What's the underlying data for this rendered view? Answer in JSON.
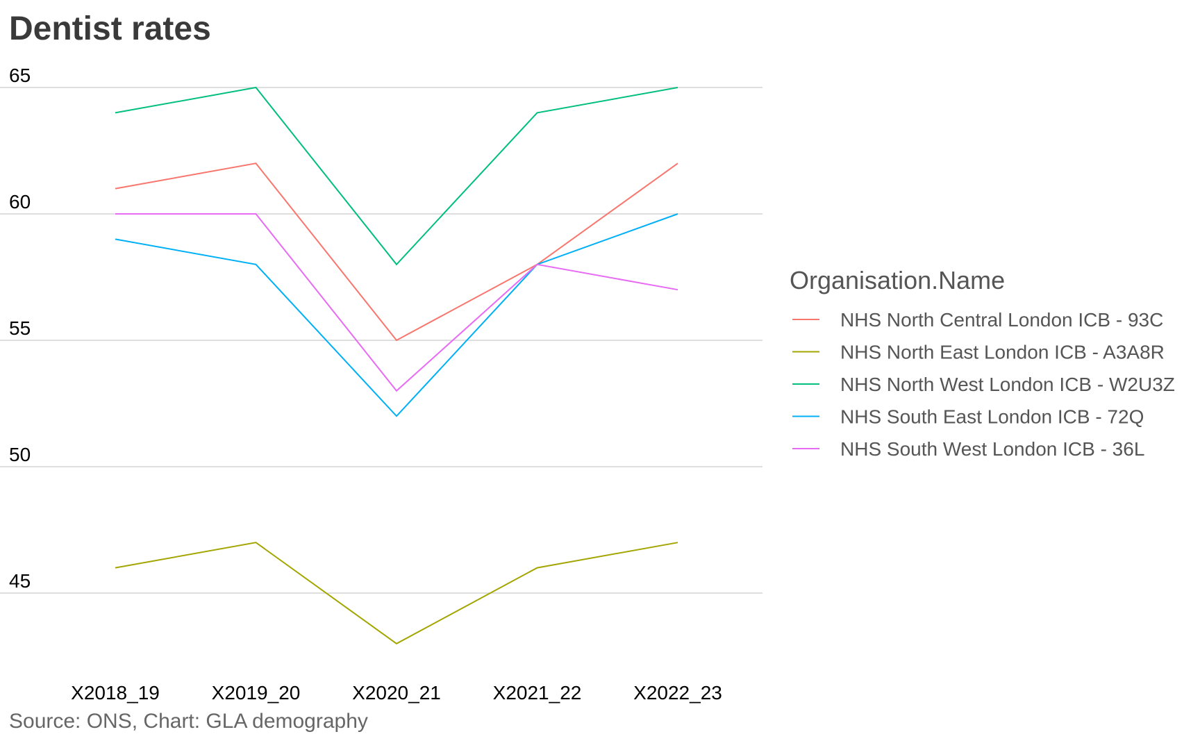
{
  "title": "Dentist rates",
  "caption": "Source: ONS, Chart: GLA demography",
  "chart_data": {
    "type": "line",
    "title": "Dentist rates",
    "xlabel": "",
    "ylabel": "",
    "categories": [
      "X2018_19",
      "X2019_20",
      "X2020_21",
      "X2021_22",
      "X2022_23"
    ],
    "ylim": [
      43,
      65
    ],
    "yticks": [
      45,
      50,
      55,
      60,
      65
    ],
    "grid": "horizontal major",
    "legend_position": "right",
    "legend_title": "Organisation.Name",
    "series": [
      {
        "name": "NHS North Central London ICB - 93C",
        "color": "#F8766D",
        "values": [
          61,
          62,
          55,
          58,
          62
        ]
      },
      {
        "name": "NHS North East London ICB - A3A8R",
        "color": "#A3A500",
        "values": [
          46,
          47,
          43,
          46,
          47
        ]
      },
      {
        "name": "NHS North West London ICB - W2U3Z",
        "color": "#00BF7D",
        "values": [
          64,
          65,
          58,
          64,
          65
        ]
      },
      {
        "name": "NHS South East London ICB - 72Q",
        "color": "#00B0F6",
        "values": [
          59,
          58,
          52,
          58,
          60
        ]
      },
      {
        "name": "NHS South West London ICB - 36L",
        "color": "#E76BF3",
        "values": [
          60,
          60,
          53,
          58,
          57
        ]
      }
    ]
  }
}
